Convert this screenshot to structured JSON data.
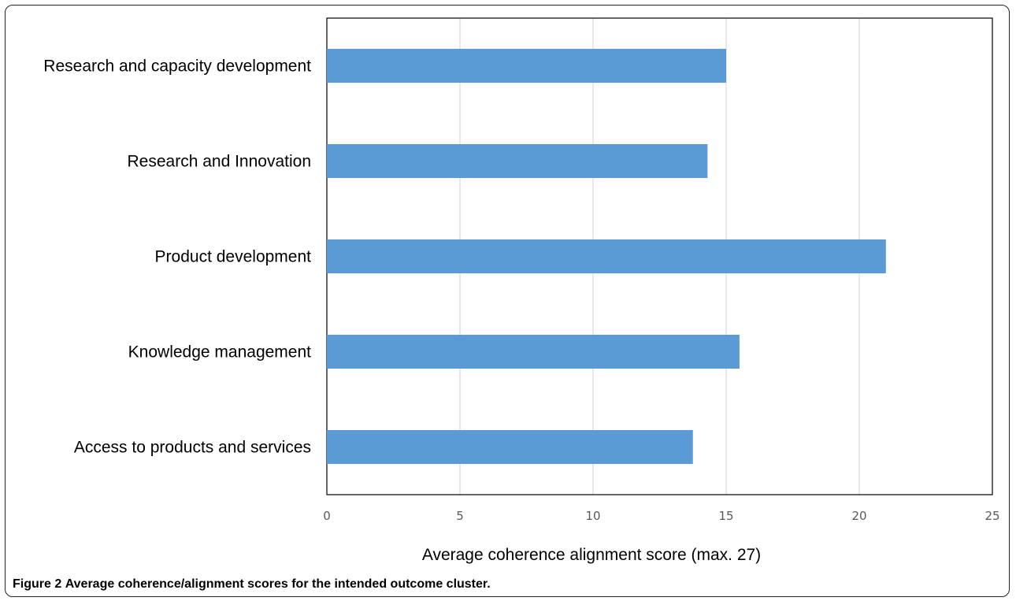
{
  "caption": {
    "figure_number": "Figure 2",
    "text": "Average coherence/alignment scores for the intended outcome cluster."
  },
  "colors": {
    "bar": "#5b9bd5",
    "gridline": "#d9d9d9",
    "plot_border": "#000000"
  },
  "chart_data": {
    "type": "bar",
    "orientation": "horizontal",
    "title": "",
    "xlabel": "Average coherence alignment score (max. 27)",
    "ylabel": "",
    "categories": [
      "Research and capacity development",
      "Research and Innovation",
      "Product development",
      "Knowledge management",
      "Access to products and services"
    ],
    "values": [
      15.0,
      14.3,
      21.0,
      15.5,
      13.75
    ],
    "xlim": [
      0,
      25
    ],
    "xticks": [
      0,
      5,
      10,
      15,
      20,
      25
    ],
    "grid": "vertical",
    "legend": "none"
  }
}
